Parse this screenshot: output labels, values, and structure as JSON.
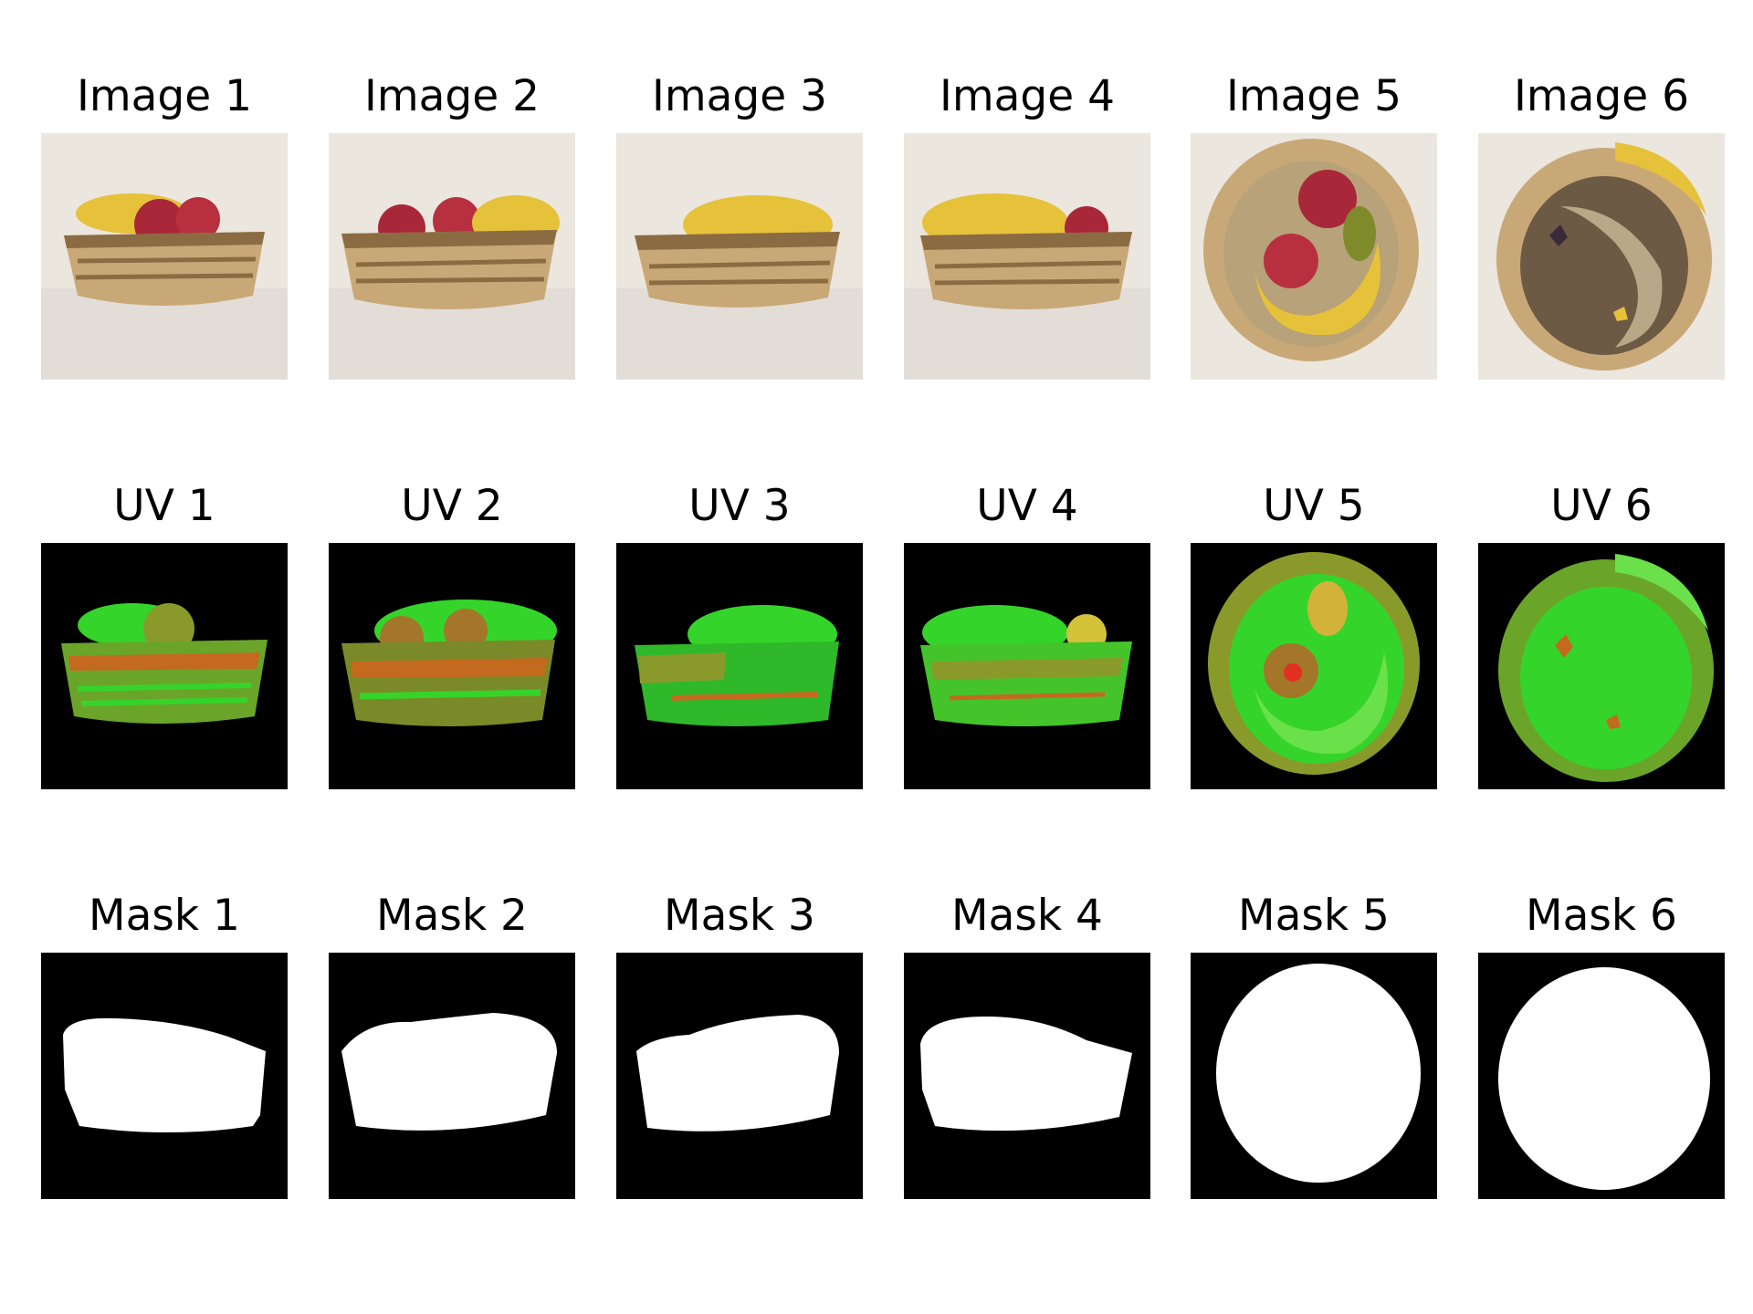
{
  "rows": [
    {
      "kind": "image",
      "labels": [
        "Image 1",
        "Image 2",
        "Image 3",
        "Image 4",
        "Image 5",
        "Image 6"
      ]
    },
    {
      "kind": "uv",
      "labels": [
        "UV 1",
        "UV 2",
        "UV 3",
        "UV 4",
        "UV 5",
        "UV 6"
      ]
    },
    {
      "kind": "mask",
      "labels": [
        "Mask 1",
        "Mask 2",
        "Mask 3",
        "Mask 4",
        "Mask 5",
        "Mask 6"
      ]
    }
  ],
  "colors": {
    "background": "#ffffff",
    "photo_backdrop": "#e9e4dc",
    "wicker": "#c9a877",
    "wicker_dark": "#8b6b42",
    "banana": "#e6c13a",
    "apple": "#a8283a",
    "uv_bg": "#000000",
    "uv_green": "#35d42a",
    "uv_olive": "#8a9a2a",
    "uv_orange": "#c46a1e",
    "mask_bg": "#000000",
    "mask_fg": "#ffffff"
  }
}
